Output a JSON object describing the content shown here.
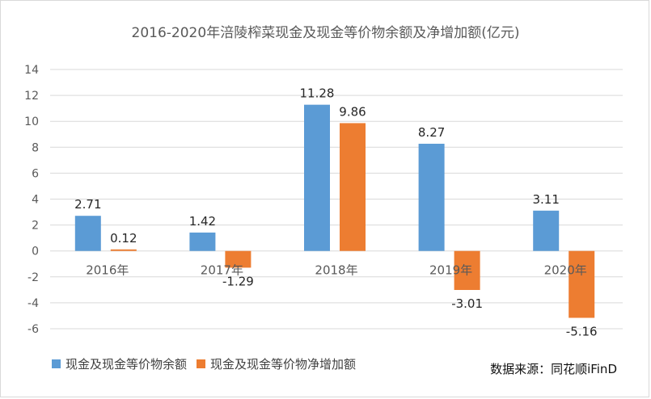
{
  "chart_data": {
    "type": "bar",
    "title": "2016-2020年涪陵榨菜现金及现金等价物余额及净增加额(亿元)",
    "categories": [
      "2016年",
      "2017年",
      "2018年",
      "2019年",
      "2020年"
    ],
    "series": [
      {
        "name": "现金及现金等价物余额",
        "color": "#5b9bd5",
        "values": [
          2.71,
          1.42,
          11.28,
          8.27,
          3.11
        ]
      },
      {
        "name": "现金及现金等价物净增加额",
        "color": "#ed7d31",
        "values": [
          0.12,
          -1.29,
          9.86,
          -3.01,
          -5.16
        ]
      }
    ],
    "value_labels": [
      [
        "2.71",
        "1.42",
        "11.28",
        "8.27",
        "3.11"
      ],
      [
        "0.12",
        "-1.29",
        "9.86",
        "-3.01",
        "-5.16"
      ]
    ],
    "ylim": [
      -6,
      14
    ],
    "yticks": [
      -6,
      -4,
      -2,
      0,
      2,
      4,
      6,
      8,
      10,
      12,
      14
    ],
    "xlabel": "",
    "ylabel": "",
    "grid": true,
    "legend_position": "bottom-left"
  },
  "source": "数据来源：同花顺iFinD"
}
